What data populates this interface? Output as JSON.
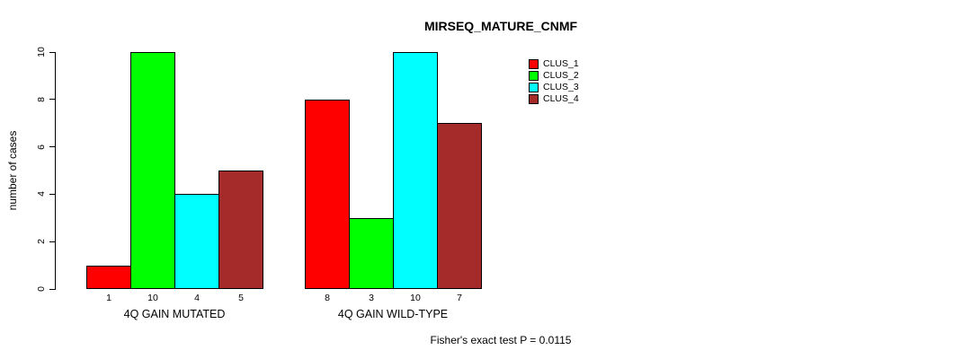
{
  "figure": {
    "title": "MIRSEQ_MATURE_CNMF",
    "ylabel": "number of cases",
    "footer": "Fisher's exact test P = 0.0115"
  },
  "chart_data": {
    "type": "bar",
    "title": "MIRSEQ_MATURE_CNMF",
    "xlabel": "",
    "ylabel": "number of cases",
    "ylim": [
      0,
      10
    ],
    "yticks": [
      0,
      2,
      4,
      6,
      8,
      10
    ],
    "grid": false,
    "legend_position": "right",
    "categories": [
      "4Q GAIN MUTATED",
      "4Q GAIN WILD-TYPE"
    ],
    "series": [
      {
        "name": "CLUS_1",
        "color": "#FF0000",
        "values": [
          1,
          8
        ]
      },
      {
        "name": "CLUS_2",
        "color": "#00FF00",
        "values": [
          10,
          3
        ]
      },
      {
        "name": "CLUS_3",
        "color": "#00FFFF",
        "values": [
          4,
          10
        ]
      },
      {
        "name": "CLUS_4",
        "color": "#A52A2A",
        "values": [
          5,
          7
        ]
      }
    ],
    "bar_value_labels_shown": true,
    "annotation": "Fisher's exact test P = 0.0115"
  }
}
